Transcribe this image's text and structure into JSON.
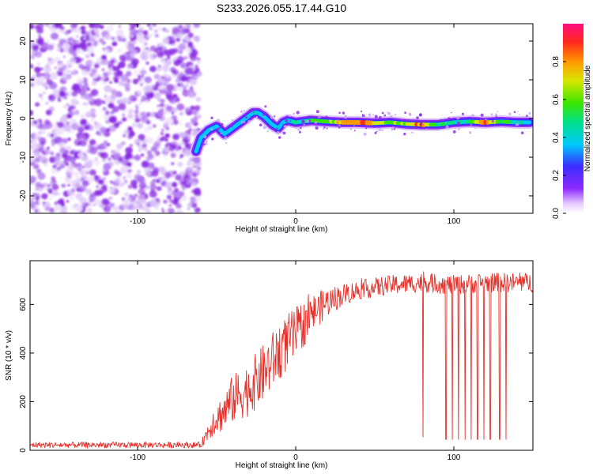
{
  "title": "S233.2026.055.17.44.G10",
  "chart_data": [
    {
      "type": "heatmap",
      "xlabel": "Height of straight line (km)",
      "ylabel": "Frequency (Hz)",
      "xlim": [
        -168,
        150
      ],
      "ylim": [
        -24.5,
        24.5
      ],
      "xticks": [
        -100,
        0,
        100
      ],
      "yticks": [
        -20,
        -10,
        0,
        10,
        20
      ],
      "colorbar": {
        "label": "Normalized spectral amplitude",
        "range": [
          0,
          1
        ],
        "ticks": [
          0.0,
          0.2,
          0.4,
          0.6,
          0.8
        ],
        "tick_labels": [
          "0.0",
          "0.2",
          "0.4",
          "0.6",
          "0.8"
        ]
      },
      "noise_region": {
        "x_from": -168,
        "x_to": -63,
        "freq_from": -24.5,
        "freq_to": 24.5,
        "amplitude": 0.05
      },
      "ridge_line": {
        "x": [
          -63,
          -60,
          -55,
          -50,
          -45,
          -40,
          -35,
          -30,
          -27,
          -24,
          -20,
          -15,
          -11,
          -8,
          -5,
          0,
          10,
          20,
          30,
          40,
          50,
          60,
          70,
          80,
          90,
          100,
          110,
          120,
          130,
          140,
          148
        ],
        "freq": [
          -8.5,
          -5,
          -3,
          -2,
          -4,
          -2.5,
          -1,
          0.5,
          1.5,
          1.5,
          0.5,
          -1.5,
          -2.5,
          -1,
          -0.5,
          -1,
          -0.5,
          -0.8,
          -1,
          -1,
          -1.2,
          -1,
          -1.4,
          -1.6,
          -1.6,
          -1,
          -0.8,
          -1,
          -0.8,
          -1,
          -1
        ],
        "amp": [
          0.3,
          0.25,
          0.3,
          0.5,
          0.35,
          0.45,
          0.4,
          0.35,
          0.4,
          0.45,
          0.35,
          0.3,
          0.35,
          0.4,
          0.45,
          0.5,
          0.6,
          0.7,
          0.85,
          0.95,
          0.8,
          0.65,
          0.7,
          0.9,
          0.6,
          0.45,
          0.55,
          0.95,
          0.6,
          0.5,
          0.4
        ]
      }
    },
    {
      "type": "line",
      "xlabel": "Height of straight line (km)",
      "ylabel": "SNR (10 * v/v)",
      "xlim": [
        -168,
        150
      ],
      "ylim": [
        0,
        780
      ],
      "xticks": [
        -100,
        0,
        100
      ],
      "yticks": [
        0,
        200,
        400,
        600
      ],
      "color": "#e8302a",
      "envelope": {
        "x": [
          -168,
          -60,
          -52,
          -45,
          -40,
          -30,
          -20,
          -10,
          0,
          10,
          20,
          30,
          40,
          60,
          80,
          100,
          120,
          150
        ],
        "mean": [
          22,
          22,
          120,
          160,
          210,
          250,
          320,
          410,
          480,
          560,
          610,
          640,
          660,
          680,
          690,
          680,
          690,
          690
        ],
        "jitter": [
          12,
          12,
          60,
          80,
          100,
          110,
          120,
          120,
          110,
          80,
          60,
          45,
          40,
          40,
          40,
          40,
          40,
          40
        ]
      },
      "dropouts": [
        {
          "x": 80.5,
          "snr": 55
        },
        {
          "x": 95,
          "snr": 45
        },
        {
          "x": 99,
          "snr": 45
        },
        {
          "x": 103,
          "snr": 45
        },
        {
          "x": 107,
          "snr": 45
        },
        {
          "x": 111,
          "snr": 45
        },
        {
          "x": 115,
          "snr": 45
        },
        {
          "x": 119,
          "snr": 45
        },
        {
          "x": 123,
          "snr": 45
        },
        {
          "x": 129,
          "snr": 45
        },
        {
          "x": 133,
          "snr": 45
        }
      ]
    }
  ]
}
